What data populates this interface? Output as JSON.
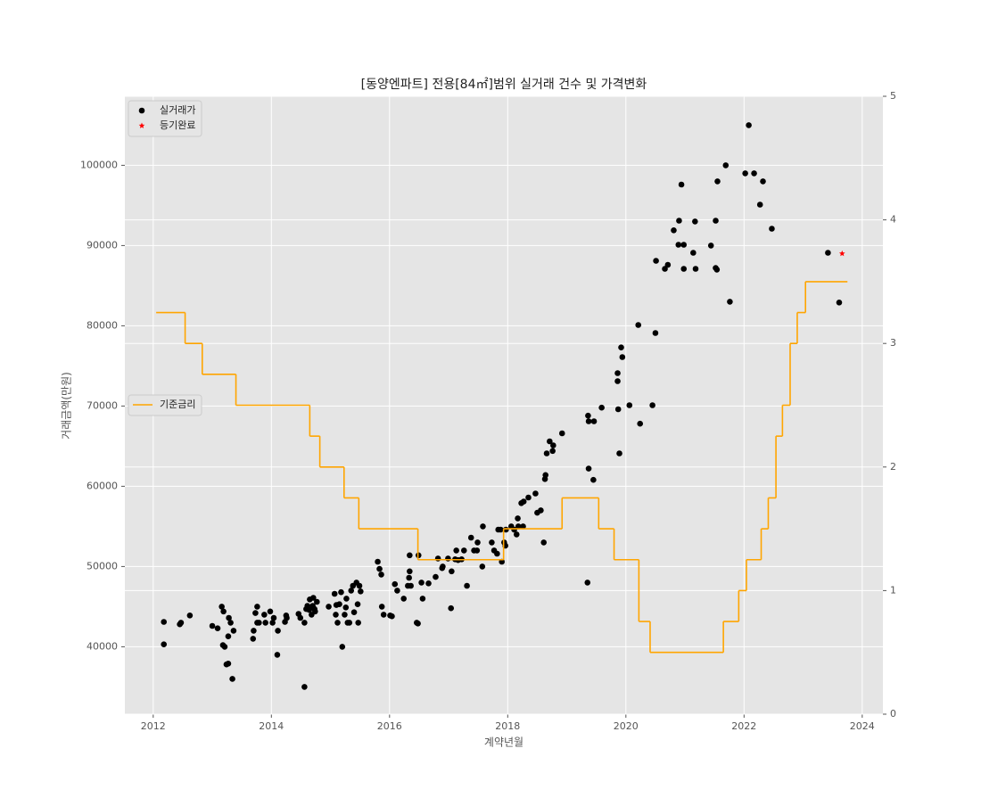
{
  "chart_data": {
    "type": "scatter",
    "title": "[동양엔파트] 전용[84㎡]범위 실거래 건수 및 가격변화",
    "xlabel": "계약년월",
    "ylabel": "거래금액(만원)",
    "xlim": [
      2011.52,
      2024.35
    ],
    "xticks": [
      2012,
      2014,
      2016,
      2018,
      2020,
      2022,
      2024
    ],
    "ylim": [
      31600,
      108600
    ],
    "yticks": [
      40000,
      50000,
      60000,
      70000,
      80000,
      90000,
      100000
    ],
    "y2lim": [
      0,
      5
    ],
    "y2ticks": [
      0,
      1,
      2,
      3,
      4,
      5
    ],
    "grid": true,
    "background": "#e5e5e5",
    "legend": "upper left",
    "series": [
      {
        "name": "실거래가",
        "type": "scatter",
        "marker": "circle",
        "color": "#000000",
        "x": [
          2012.18,
          2012.18,
          2012.45,
          2012.47,
          2012.62,
          2013.0,
          2013.09,
          2013.16,
          2013.18,
          2013.21,
          2013.19,
          2013.24,
          2013.27,
          2013.27,
          2013.28,
          2013.31,
          2013.34,
          2013.36,
          2013.69,
          2013.7,
          2013.73,
          2013.76,
          2013.76,
          2013.79,
          2013.88,
          2013.9,
          2013.98,
          2014.02,
          2014.04,
          2014.1,
          2014.11,
          2014.23,
          2014.25,
          2014.26,
          2014.46,
          2014.49,
          2014.56,
          2014.56,
          2014.59,
          2014.61,
          2014.64,
          2014.65,
          2014.68,
          2014.7,
          2014.71,
          2014.73,
          2014.74,
          2014.77,
          2014.97,
          2015.07,
          2015.09,
          2015.1,
          2015.12,
          2015.15,
          2015.18,
          2015.2,
          2015.24,
          2015.26,
          2015.27,
          2015.29,
          2015.32,
          2015.35,
          2015.38,
          2015.4,
          2015.44,
          2015.46,
          2015.47,
          2015.49,
          2015.51,
          2015.8,
          2015.83,
          2015.86,
          2015.87,
          2015.9,
          2016.01,
          2016.04,
          2016.09,
          2016.13,
          2016.24,
          2016.31,
          2016.33,
          2016.34,
          2016.34,
          2016.36,
          2016.46,
          2016.48,
          2016.49,
          2016.54,
          2016.56,
          2016.66,
          2016.78,
          2016.82,
          2016.89,
          2016.9,
          2016.99,
          2017.04,
          2017.05,
          2017.11,
          2017.13,
          2017.16,
          2017.22,
          2017.26,
          2017.31,
          2017.38,
          2017.43,
          2017.48,
          2017.49,
          2017.57,
          2017.58,
          2017.73,
          2017.77,
          2017.82,
          2017.84,
          2017.88,
          2017.9,
          2017.94,
          2017.96,
          2017.97,
          2018.06,
          2018.11,
          2018.15,
          2018.17,
          2018.18,
          2018.26,
          2018.23,
          2018.27,
          2018.35,
          2018.47,
          2018.5,
          2018.56,
          2018.61,
          2018.63,
          2018.64,
          2018.66,
          2018.71,
          2018.76,
          2018.77,
          2018.92,
          2019.35,
          2019.36,
          2019.37,
          2019.37,
          2019.45,
          2019.46,
          2019.59,
          2019.86,
          2019.86,
          2019.87,
          2019.89,
          2019.92,
          2019.94,
          2020.06,
          2020.21,
          2020.24,
          2020.45,
          2020.5,
          2020.51,
          2020.66,
          2020.71,
          2020.81,
          2020.89,
          2020.9,
          2020.98,
          2020.94,
          2020.98,
          2021.14,
          2021.17,
          2021.18,
          2021.44,
          2021.52,
          2021.52,
          2021.54,
          2021.55,
          2021.69,
          2021.76,
          2022.02,
          2022.08,
          2022.17,
          2022.27,
          2022.32,
          2022.47,
          2023.42,
          2023.61
        ],
        "values": [
          43100,
          40300,
          42800,
          43000,
          43900,
          42600,
          42300,
          45000,
          40200,
          40000,
          44400,
          37800,
          37900,
          41300,
          43600,
          43000,
          36000,
          42000,
          41000,
          42000,
          44200,
          43000,
          45000,
          43000,
          44000,
          43000,
          44400,
          43000,
          43600,
          39000,
          42000,
          43100,
          43900,
          43600,
          44100,
          43600,
          43000,
          35000,
          44700,
          45100,
          44600,
          45900,
          44000,
          45100,
          46100,
          44700,
          44400,
          45600,
          45000,
          46600,
          44000,
          45200,
          43000,
          45300,
          46800,
          40000,
          44000,
          44900,
          46000,
          43000,
          43000,
          47000,
          47600,
          44300,
          48000,
          45300,
          43000,
          47600,
          46900,
          50600,
          49700,
          49000,
          45000,
          44000,
          43900,
          43800,
          47800,
          47000,
          46000,
          47600,
          48600,
          49400,
          51400,
          47600,
          43000,
          42900,
          51400,
          48000,
          46000,
          47900,
          48700,
          51000,
          49800,
          50000,
          51000,
          44800,
          49400,
          50900,
          52000,
          50800,
          50900,
          52000,
          47600,
          53600,
          52000,
          52000,
          53000,
          50000,
          55000,
          53000,
          52000,
          51600,
          54600,
          54600,
          50600,
          53000,
          52600,
          54600,
          55000,
          54600,
          54000,
          56000,
          55000,
          55000,
          57900,
          58100,
          58600,
          59100,
          56700,
          57000,
          53000,
          60900,
          61400,
          64100,
          65600,
          64400,
          65100,
          66600,
          48000,
          68800,
          62200,
          68100,
          60800,
          68100,
          69800,
          74100,
          73100,
          69600,
          64100,
          77300,
          76100,
          70100,
          80100,
          67800,
          70100,
          79100,
          88100,
          87100,
          87600,
          91900,
          90100,
          93100,
          90100,
          97600,
          87100,
          89100,
          93000,
          87100,
          90000,
          93100,
          87200,
          87000,
          98000,
          100000,
          83000,
          99000,
          105000,
          99000,
          95100,
          98000,
          92100,
          89100,
          82900
        ]
      },
      {
        "name": "등기완료",
        "type": "scatter",
        "marker": "star",
        "color": "#ff0000",
        "x": [
          2023.66
        ],
        "values": [
          89000
        ]
      },
      {
        "name": "기준금리",
        "type": "step",
        "axis": "y2",
        "color": "#ffa500",
        "legend": "center left",
        "x": [
          2012.05,
          2012.54,
          2012.83,
          2013.4,
          2014.65,
          2014.82,
          2015.23,
          2015.48,
          2016.48,
          2017.93,
          2018.92,
          2019.54,
          2019.8,
          2020.22,
          2020.41,
          2021.65,
          2021.91,
          2022.04,
          2022.29,
          2022.41,
          2022.54,
          2022.65,
          2022.78,
          2022.9,
          2023.04,
          2023.75
        ],
        "values": [
          3.25,
          3.0,
          2.75,
          2.5,
          2.25,
          2.0,
          1.75,
          1.5,
          1.25,
          1.5,
          1.75,
          1.5,
          1.25,
          0.75,
          0.5,
          0.75,
          1.0,
          1.25,
          1.5,
          1.75,
          2.25,
          2.5,
          3.0,
          3.25,
          3.5,
          3.5
        ]
      }
    ]
  }
}
